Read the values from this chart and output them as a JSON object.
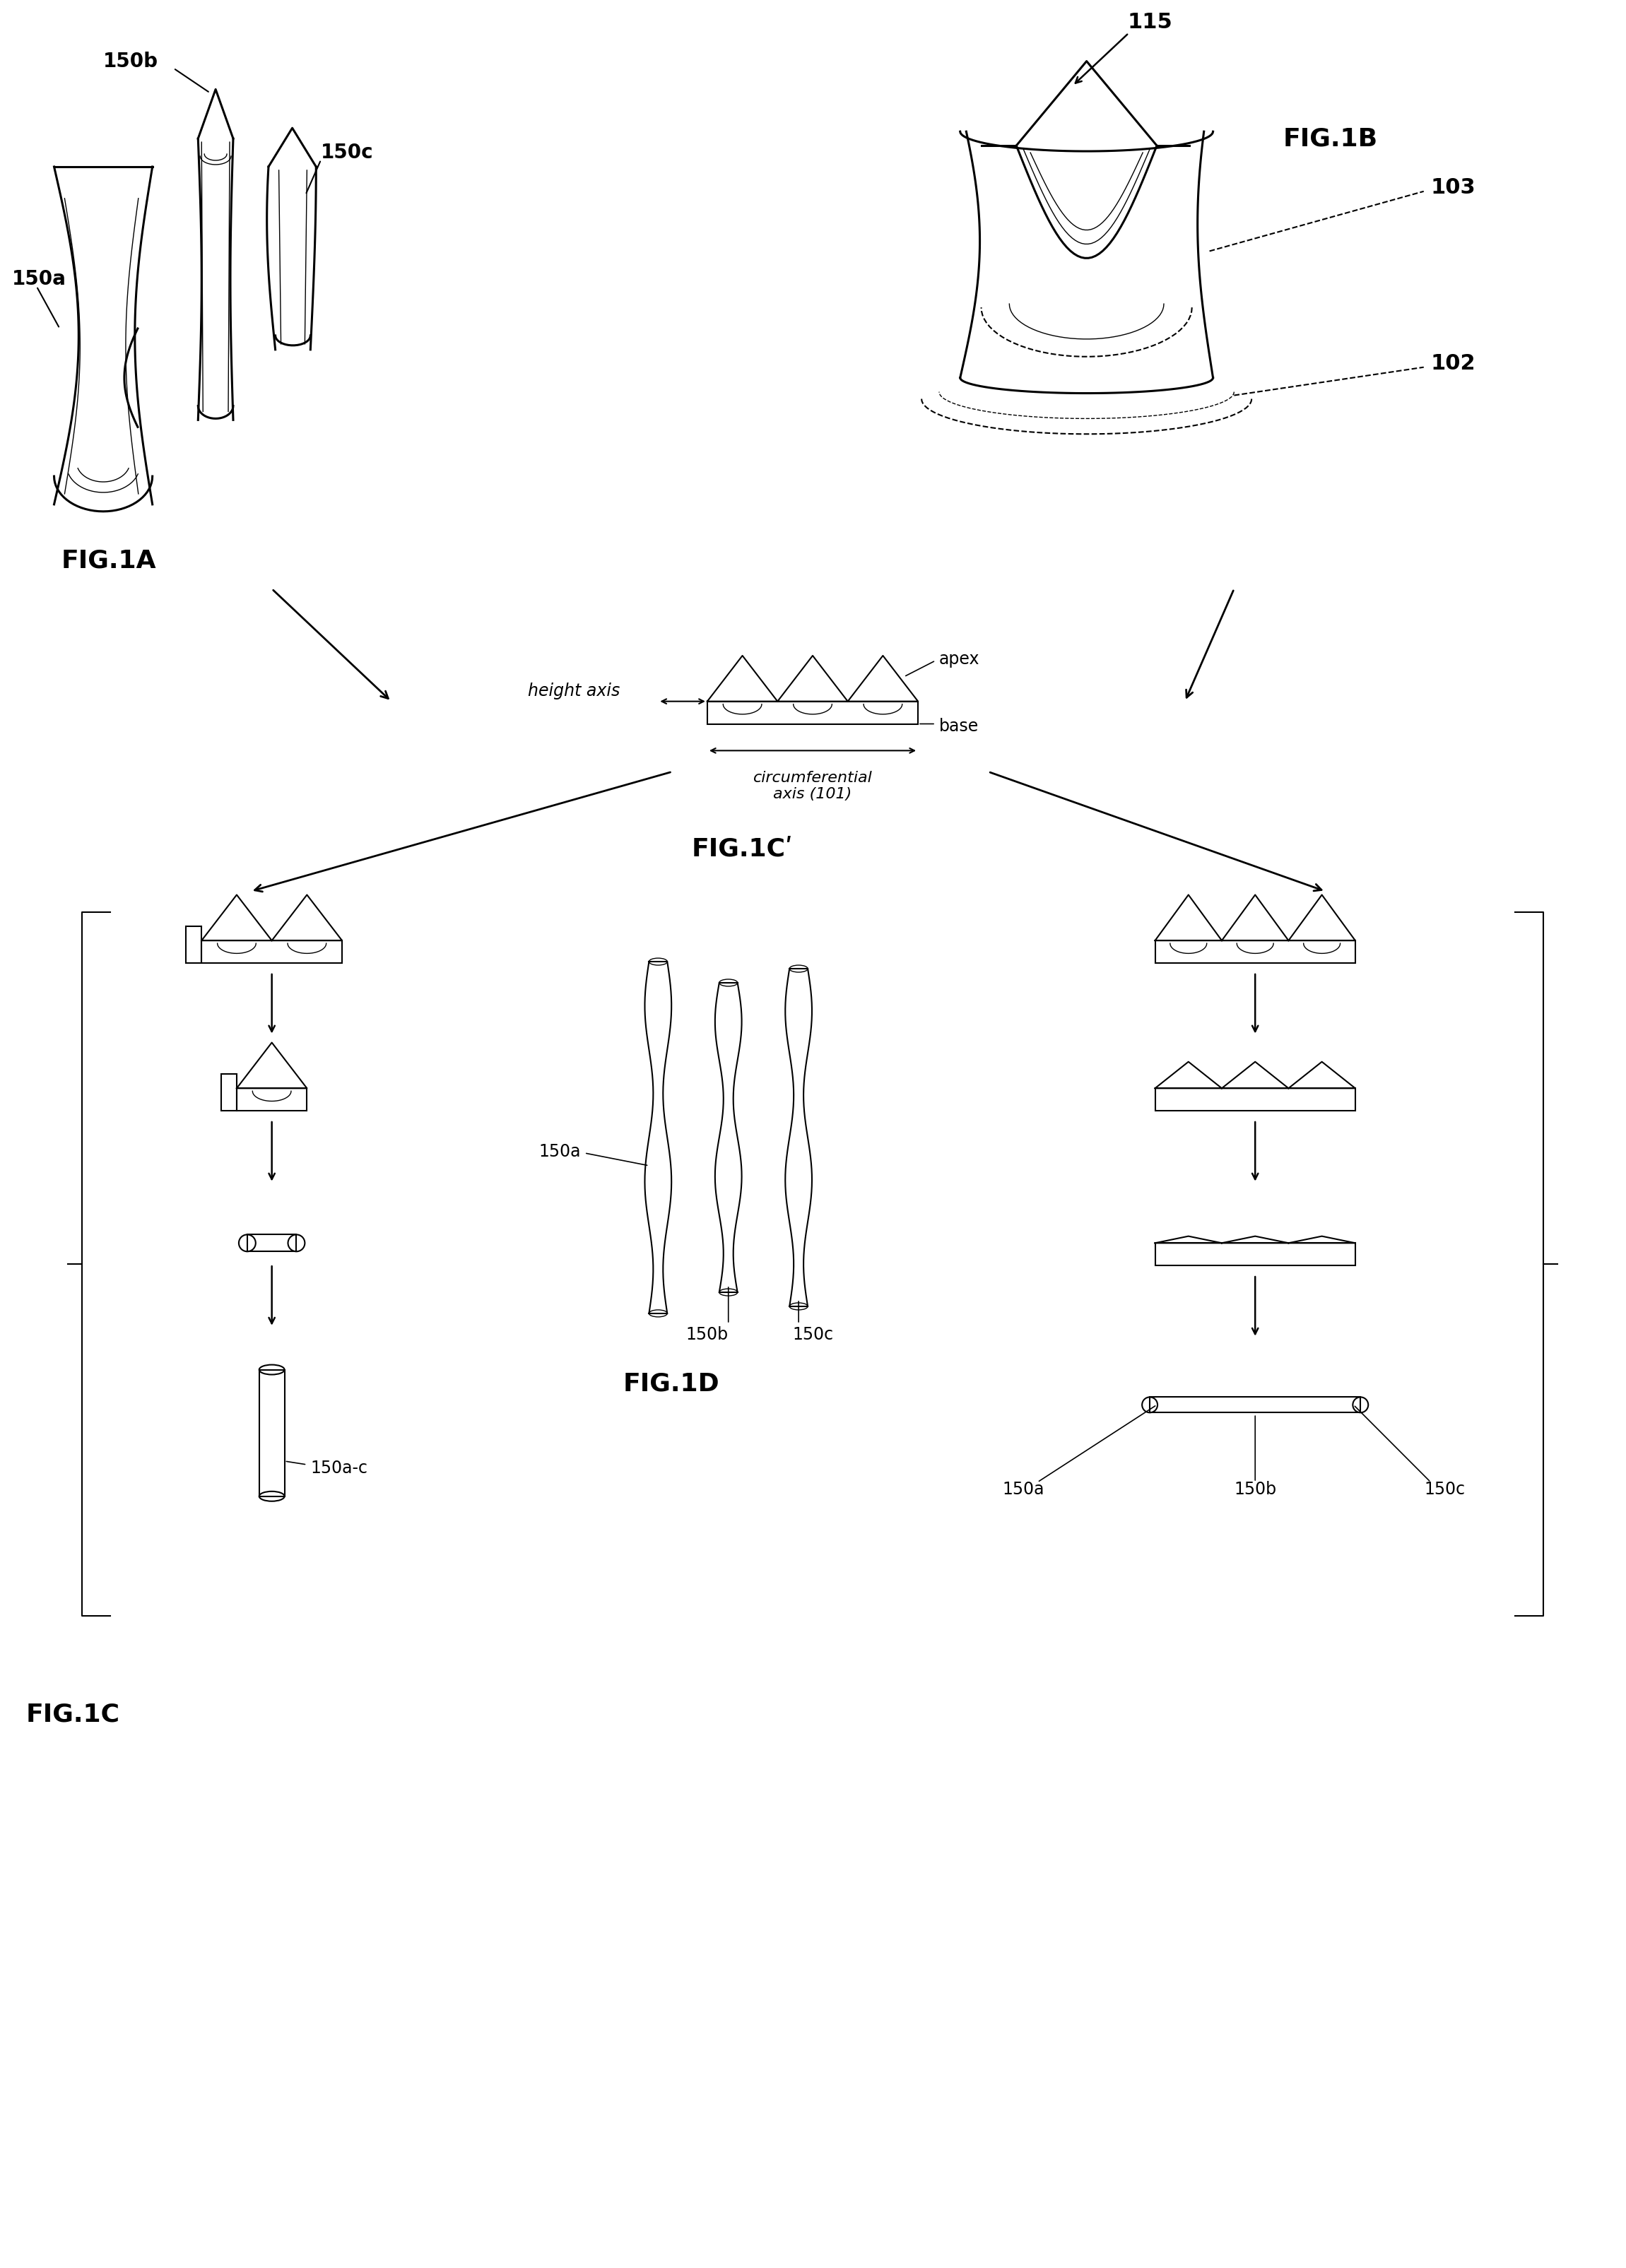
{
  "bg_color": "#ffffff",
  "line_color": "#000000",
  "fig_width": 23.01,
  "fig_height": 32.1,
  "labels": {
    "150a_fig1a": "150a",
    "150b_fig1a": "150b",
    "150c_fig1a": "150c",
    "115": "115",
    "103": "103",
    "102": "102",
    "fig1a": "FIG.1A",
    "fig1b": "FIG.1B",
    "fig1c_label": "FIG.1C",
    "fig1c_prime": "FIG.1Cʹ",
    "fig1d": "FIG.1D",
    "apex": "apex",
    "base": "base",
    "height_axis": "height axis",
    "circum_axis": "circumferential\naxis (101)",
    "150a_fig1d": "150a",
    "150b_fig1d": "150b",
    "150c_fig1d": "150c",
    "150a_c": "150a-c"
  }
}
